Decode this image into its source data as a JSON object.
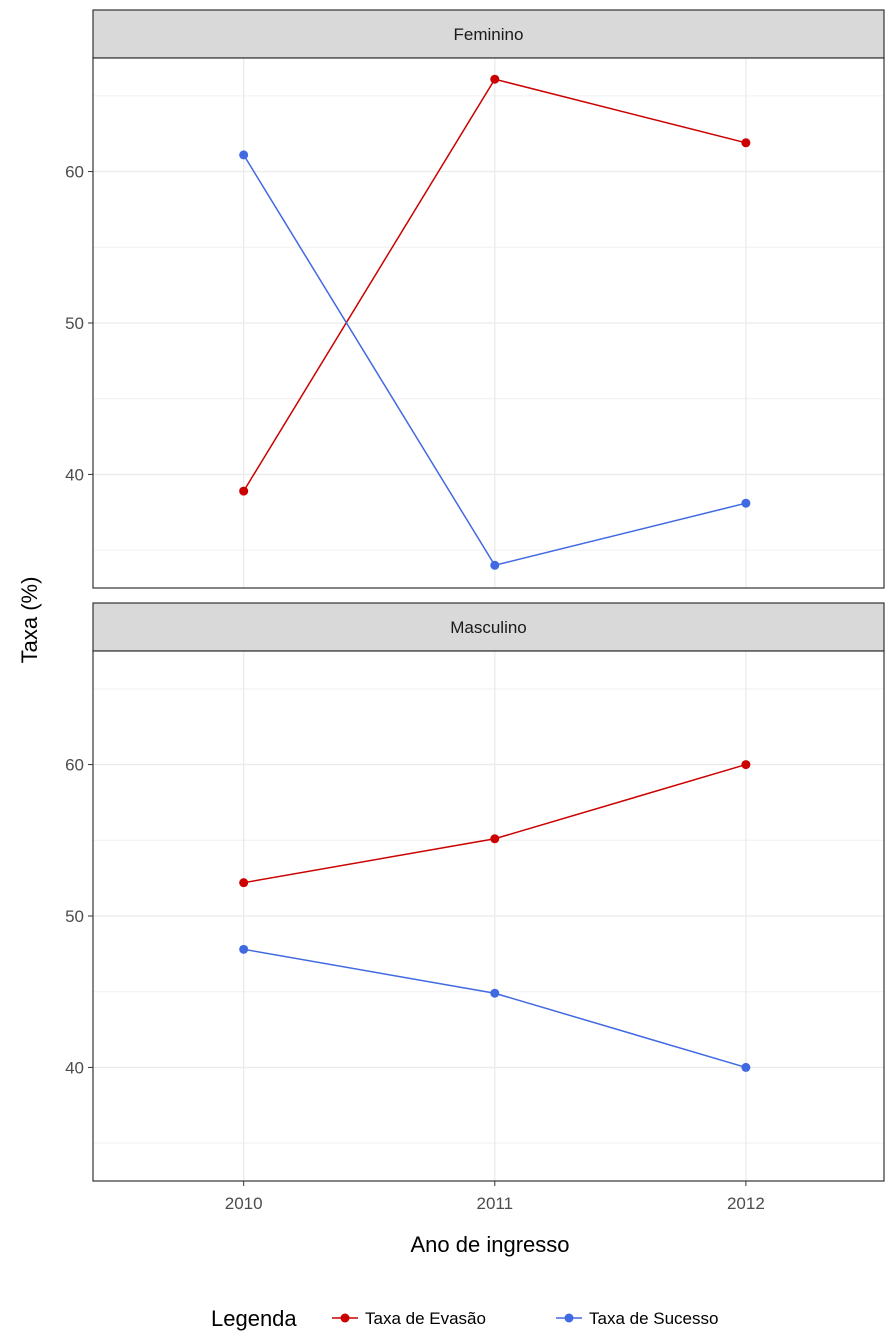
{
  "chart_data": {
    "type": "line",
    "xlabel": "Ano de ingresso",
    "ylabel": "Taxa (%)",
    "x": [
      2010,
      2011,
      2012
    ],
    "x_tick_labels": [
      "2010",
      "2011",
      "2012"
    ],
    "y_ticks": [
      40,
      50,
      60
    ],
    "y_tick_labels": [
      "40",
      "50",
      "60"
    ],
    "ylim": [
      32.5,
      67.5
    ],
    "grid": true,
    "legend": {
      "title": "Legenda",
      "placement": "bottom",
      "entries": [
        {
          "label": "Taxa de Evasão",
          "color": "#cc0000"
        },
        {
          "label": "Taxa de Sucesso",
          "color": "#4169e1"
        }
      ]
    },
    "panels": [
      {
        "strip": "Feminino",
        "series": [
          {
            "name": "Taxa de Evasão",
            "color": "#cc0000",
            "values": [
              38.9,
              66.1,
              61.9
            ]
          },
          {
            "name": "Taxa de Sucesso",
            "color": "#4169e1",
            "values": [
              61.1,
              34.0,
              38.1
            ]
          }
        ]
      },
      {
        "strip": "Masculino",
        "series": [
          {
            "name": "Taxa de Evasão",
            "color": "#cc0000",
            "values": [
              52.2,
              55.1,
              60.0
            ]
          },
          {
            "name": "Taxa de Sucesso",
            "color": "#4169e1",
            "values": [
              47.8,
              44.9,
              40.0
            ]
          }
        ]
      }
    ]
  }
}
